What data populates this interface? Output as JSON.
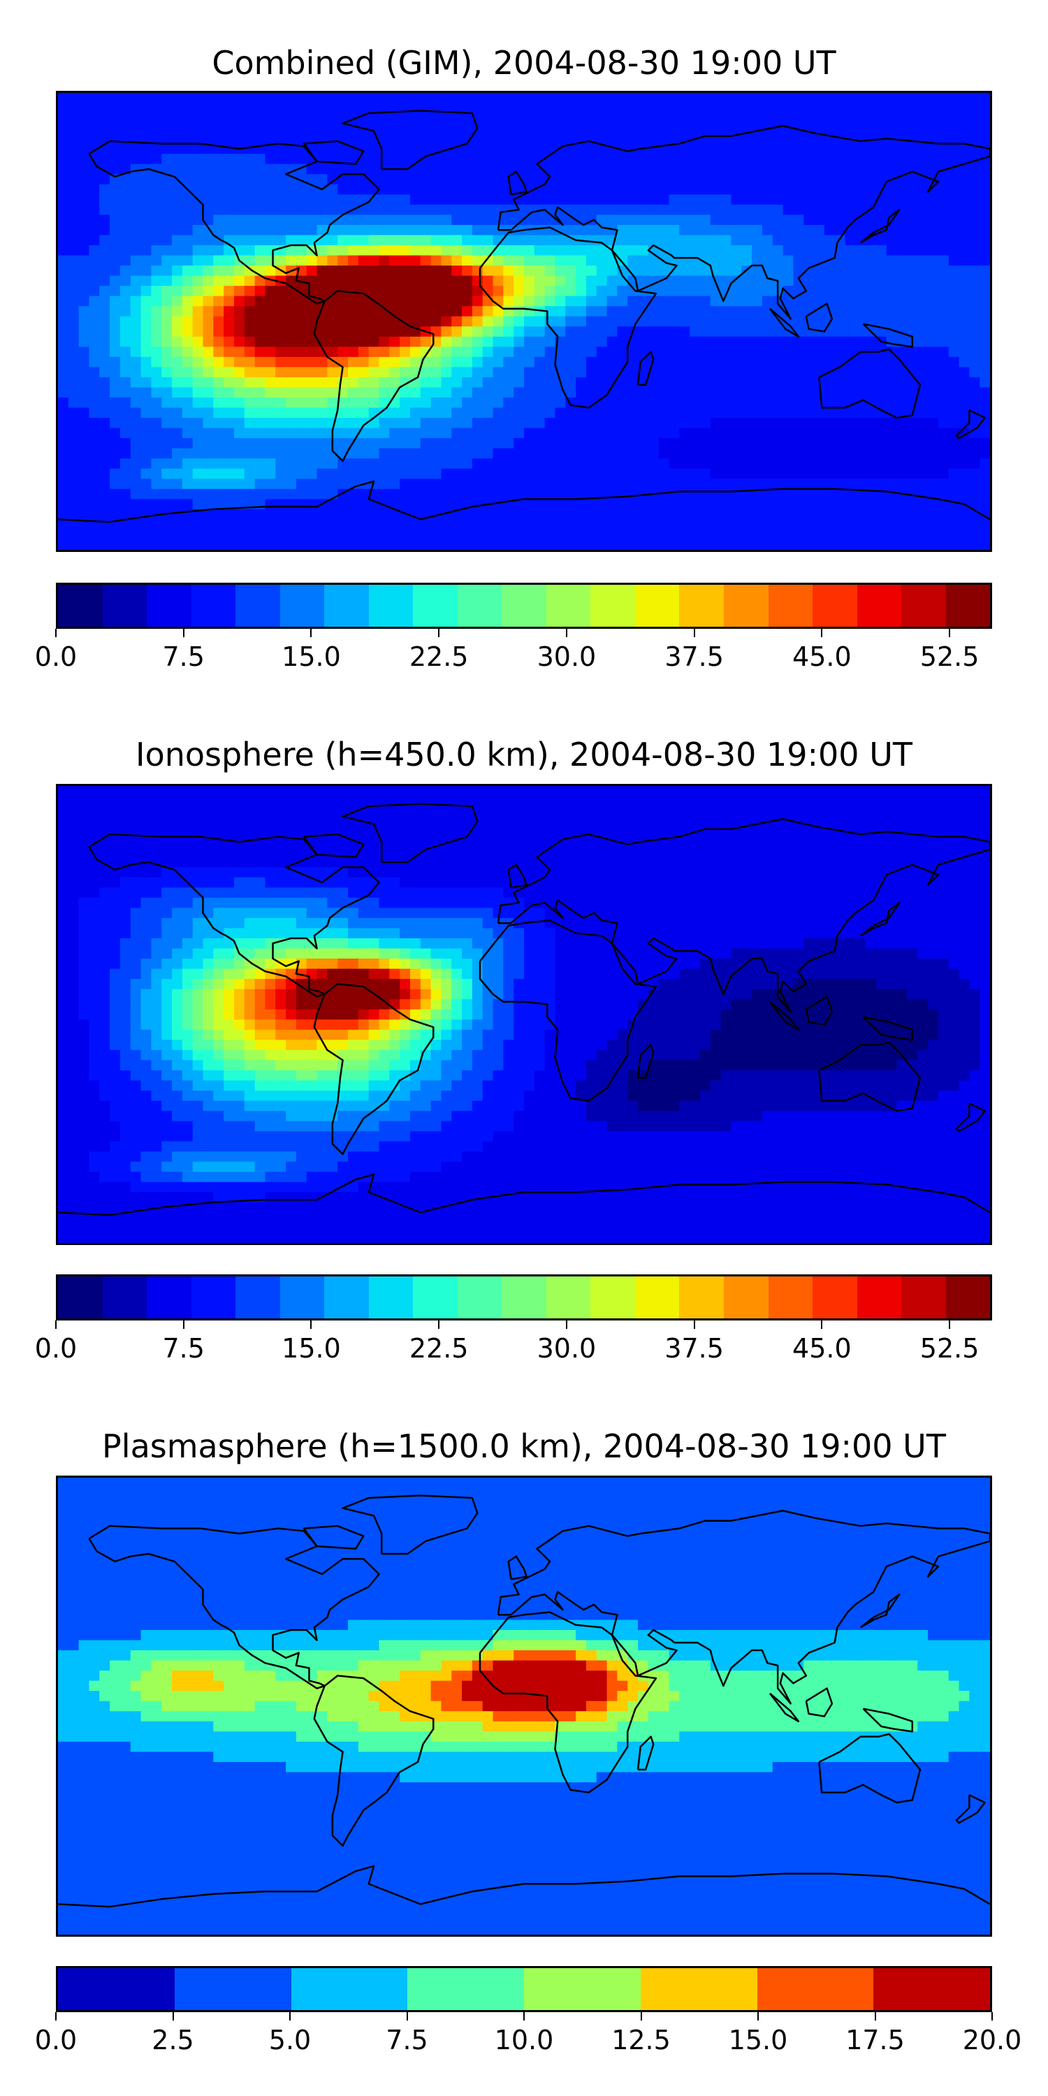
{
  "panels": [
    {
      "title": "Combined (GIM), 2004-08-30 19:00 UT",
      "colorbar": {
        "min": 0.0,
        "max": 55.0,
        "step": 2.5,
        "ticks": [
          "0.0",
          "7.5",
          "15.0",
          "22.5",
          "30.0",
          "37.5",
          "45.0",
          "52.5"
        ],
        "tick_values": [
          0.0,
          7.5,
          15.0,
          22.5,
          30.0,
          37.5,
          45.0,
          52.5
        ],
        "colors": [
          "#00007f",
          "#0000b2",
          "#0000ef",
          "#0010ff",
          "#0044ff",
          "#0078ff",
          "#00acff",
          "#00dcf6",
          "#22ffd4",
          "#4dffaa",
          "#77ff80",
          "#a0ff56",
          "#caff2c",
          "#f3f300",
          "#ffc200",
          "#ff9100",
          "#ff6000",
          "#ff3000",
          "#ef0000",
          "#c40000",
          "#8a0000"
        ]
      },
      "field": {
        "background": 9.0,
        "blobs": [
          {
            "lon": -60,
            "lat": 10,
            "value": 53,
            "rlon": 28,
            "rlat": 12
          },
          {
            "lon": -95,
            "lat": 2,
            "value": 40,
            "rlon": 45,
            "rlat": 22
          },
          {
            "lon": -40,
            "lat": 12,
            "value": 45,
            "rlon": 35,
            "rlat": 18
          },
          {
            "lon": -80,
            "lat": -15,
            "value": 28,
            "rlon": 60,
            "rlat": 30
          },
          {
            "lon": 5,
            "lat": 15,
            "value": 22,
            "rlon": 30,
            "rlat": 12
          },
          {
            "lon": 40,
            "lat": 30,
            "value": 16,
            "rlon": 40,
            "rlat": 12
          },
          {
            "lon": 80,
            "lat": 20,
            "value": 14,
            "rlon": 30,
            "rlat": 20
          },
          {
            "lon": 140,
            "lat": 10,
            "value": 11,
            "rlon": 40,
            "rlat": 20
          },
          {
            "lon": -120,
            "lat": 50,
            "value": 12,
            "rlon": 40,
            "rlat": 15
          },
          {
            "lon": -120,
            "lat": -60,
            "value": 17,
            "rlon": 30,
            "rlat": 8
          },
          {
            "lon": 120,
            "lat": -50,
            "value": 5,
            "rlon": 70,
            "rlat": 14
          }
        ]
      }
    },
    {
      "title": "Ionosphere  (h=450.0 km), 2004-08-30 19:00 UT",
      "colorbar": {
        "min": 0.0,
        "max": 55.0,
        "step": 2.5,
        "ticks": [
          "0.0",
          "7.5",
          "15.0",
          "22.5",
          "30.0",
          "37.5",
          "45.0",
          "52.5"
        ],
        "tick_values": [
          0.0,
          7.5,
          15.0,
          22.5,
          30.0,
          37.5,
          45.0,
          52.5
        ],
        "colors": [
          "#00007f",
          "#0000b2",
          "#0000ef",
          "#0010ff",
          "#0044ff",
          "#0078ff",
          "#00acff",
          "#00dcf6",
          "#22ffd4",
          "#4dffaa",
          "#77ff80",
          "#a0ff56",
          "#caff2c",
          "#f3f300",
          "#ffc200",
          "#ff9100",
          "#ff6000",
          "#ff3000",
          "#ef0000",
          "#c40000",
          "#8a0000"
        ]
      },
      "field": {
        "background": 6.0,
        "blobs": [
          {
            "lon": -60,
            "lat": 10,
            "value": 38,
            "rlon": 30,
            "rlat": 12
          },
          {
            "lon": -90,
            "lat": 5,
            "value": 30,
            "rlon": 50,
            "rlat": 25
          },
          {
            "lon": -80,
            "lat": -15,
            "value": 20,
            "rlon": 60,
            "rlat": 35
          },
          {
            "lon": -110,
            "lat": 40,
            "value": 12,
            "rlon": 50,
            "rlat": 15
          },
          {
            "lon": -20,
            "lat": 30,
            "value": 12,
            "rlon": 25,
            "rlat": 15
          },
          {
            "lon": 120,
            "lat": -5,
            "value": 0,
            "rlon": 60,
            "rlat": 25
          },
          {
            "lon": 50,
            "lat": -30,
            "value": 2,
            "rlon": 30,
            "rlat": 15
          },
          {
            "lon": -120,
            "lat": -60,
            "value": 14,
            "rlon": 35,
            "rlat": 8
          }
        ]
      }
    },
    {
      "title": "Plasmasphere (h=1500.0 km), 2004-08-30 19:00 UT",
      "colorbar": {
        "min": 0.0,
        "max": 20.0,
        "step": 2.5,
        "ticks": [
          "0.0",
          "2.5",
          "5.0",
          "7.5",
          "10.0",
          "12.5",
          "15.0",
          "17.5",
          "20.0"
        ],
        "tick_values": [
          0.0,
          2.5,
          5.0,
          7.5,
          10.0,
          12.5,
          15.0,
          17.5,
          20.0
        ],
        "colors": [
          "#0000c0",
          "#0050ff",
          "#00c0ff",
          "#4dffaa",
          "#a0ff56",
          "#ffcc00",
          "#ff5500",
          "#c00000"
        ]
      },
      "field": {
        "background": 3.0,
        "blobs": [
          {
            "lon": 10,
            "lat": 10,
            "value": 16,
            "rlon": 28,
            "rlat": 12
          },
          {
            "lon": -20,
            "lat": 5,
            "value": 11,
            "rlon": 75,
            "rlat": 20
          },
          {
            "lon": -130,
            "lat": 10,
            "value": 10,
            "rlon": 30,
            "rlat": 14
          },
          {
            "lon": 140,
            "lat": 5,
            "value": 7,
            "rlon": 50,
            "rlat": 22
          },
          {
            "lon": 0,
            "lat": 0,
            "value": 7,
            "rlon": 180,
            "rlat": 30
          },
          {
            "lon": 0,
            "lat": 85,
            "value": 4,
            "rlon": 80,
            "rlat": 6
          }
        ]
      }
    }
  ]
}
